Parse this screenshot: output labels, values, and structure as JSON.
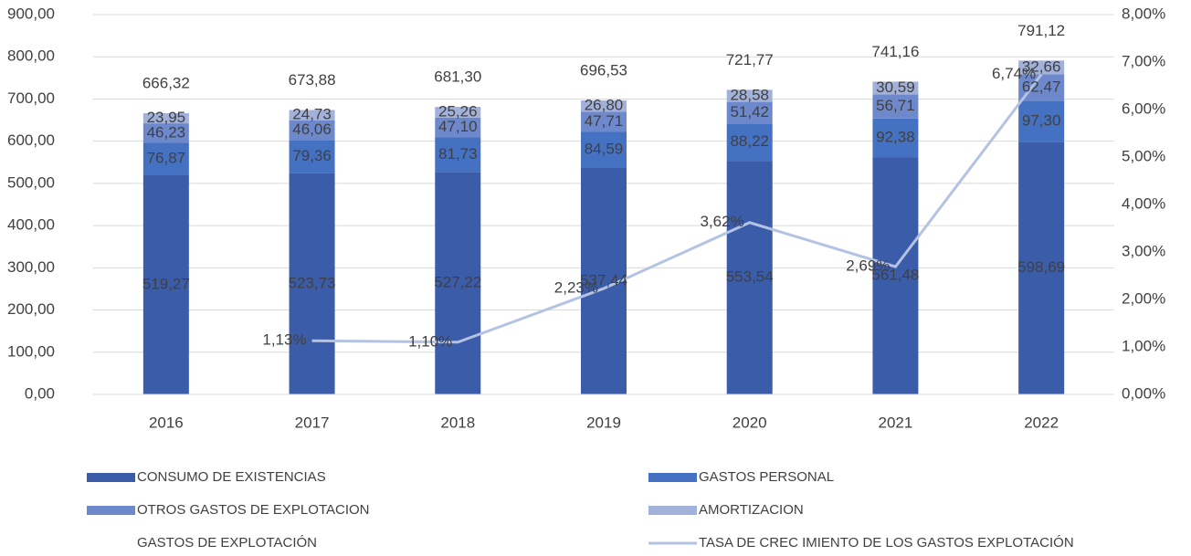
{
  "chart_data": {
    "type": "bar",
    "stacked": true,
    "categories": [
      "2016",
      "2017",
      "2018",
      "2019",
      "2020",
      "2021",
      "2022"
    ],
    "series": [
      {
        "name": "CONSUMO DE EXISTENCIAS",
        "color": "#3a5ca9",
        "values": [
          519.27,
          523.73,
          527.22,
          537.44,
          553.54,
          561.48,
          598.69
        ],
        "value_labels": [
          "519,27",
          "523,73",
          "527,22",
          "537,44",
          "553,54",
          "561,48",
          "598,69"
        ]
      },
      {
        "name": "GASTOS PERSONAL",
        "color": "#4571c2",
        "values": [
          76.87,
          79.36,
          81.73,
          84.59,
          88.22,
          92.38,
          97.3
        ],
        "value_labels": [
          "76,87",
          "79,36",
          "81,73",
          "84,59",
          "88,22",
          "92,38",
          "97,30"
        ]
      },
      {
        "name": "OTROS GASTOS DE EXPLOTACION",
        "color": "#6e88cc",
        "values": [
          46.23,
          46.06,
          47.1,
          47.71,
          51.42,
          56.71,
          62.47
        ],
        "value_labels": [
          "46,23",
          "46,06",
          "47,10",
          "47,71",
          "51,42",
          "56,71",
          "62,47"
        ]
      },
      {
        "name": "AMORTIZACION",
        "color": "#a2b1da",
        "values": [
          23.95,
          24.73,
          25.26,
          26.8,
          28.58,
          30.59,
          32.66
        ],
        "value_labels": [
          "23,95",
          "24,73",
          "25,26",
          "26,80",
          "28,58",
          "30,59",
          "32,66"
        ]
      },
      {
        "name": "GASTOS DE EXPLOTACIÓN",
        "type": "total",
        "values": [
          666.32,
          673.88,
          681.3,
          696.53,
          721.77,
          741.16,
          791.12
        ],
        "value_labels": [
          "666,32",
          "673,88",
          "681,30",
          "696,53",
          "721,77",
          "741,16",
          "791,12"
        ]
      },
      {
        "name": "TASA DE CREC IMIENTO DE LOS GASTOS EXPLOTACIÓN",
        "type": "line",
        "axis": "y2",
        "color": "#b4c3e3",
        "values": [
          null,
          1.13,
          1.1,
          2.23,
          3.62,
          2.69,
          6.74
        ],
        "value_labels": [
          null,
          "1,13%",
          "1,10%",
          "2,23%",
          "3,62%",
          "2,69%",
          "6,74%"
        ]
      }
    ],
    "ylim": [
      0,
      900
    ],
    "yticks": [
      {
        "value": 0,
        "label": "0,00"
      },
      {
        "value": 100,
        "label": "100,00"
      },
      {
        "value": 200,
        "label": "200,00"
      },
      {
        "value": 300,
        "label": "300,00"
      },
      {
        "value": 400,
        "label": "400,00"
      },
      {
        "value": 500,
        "label": "500,00"
      },
      {
        "value": 600,
        "label": "600,00"
      },
      {
        "value": 700,
        "label": "700,00"
      },
      {
        "value": 800,
        "label": "800,00"
      },
      {
        "value": 900,
        "label": "900,00"
      }
    ],
    "y2lim": [
      0,
      8
    ],
    "y2ticks": [
      {
        "value": 0,
        "label": "0,00%"
      },
      {
        "value": 1,
        "label": "1,00%"
      },
      {
        "value": 2,
        "label": "2,00%"
      },
      {
        "value": 3,
        "label": "3,00%"
      },
      {
        "value": 4,
        "label": "4,00%"
      },
      {
        "value": 5,
        "label": "5,00%"
      },
      {
        "value": 6,
        "label": "6,00%"
      },
      {
        "value": 7,
        "label": "7,00%"
      },
      {
        "value": 8,
        "label": "8,00%"
      }
    ],
    "grid": true,
    "legend": "bottom"
  }
}
